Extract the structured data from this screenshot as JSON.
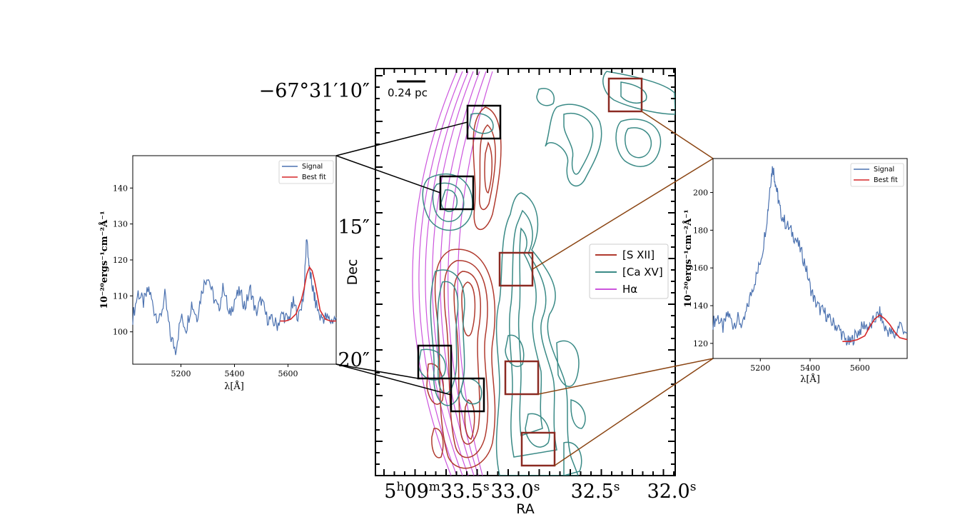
{
  "chart_data": [
    {
      "type": "contour-map",
      "xlabel": "RA",
      "ylabel": "Dec",
      "x_ticks": [
        "5h09m33.5s",
        "33.0s",
        "32.5s",
        "32.0s"
      ],
      "x_tick_parts": [
        {
          "main": "5",
          "sup": "h",
          "mid": "09",
          "sup2": "m",
          "end": "33.5",
          "sup3": "s"
        },
        {
          "main": "33.0",
          "sup": "s"
        },
        {
          "main": "32.5",
          "sup": "s"
        },
        {
          "main": "32.0",
          "sup": "s"
        }
      ],
      "y_ticks": [
        "−67°31′10″",
        "15″",
        "20″"
      ],
      "scalebar_label": "0.24 pc",
      "legend": [
        {
          "label": "[S XII]",
          "color": "#b03a2e"
        },
        {
          "label": "[Ca XV]",
          "color": "#3a8a86"
        },
        {
          "label": "Hα",
          "color": "#cc55dd"
        }
      ],
      "legend_placement": "center-right",
      "region_boxes": {
        "black": 4,
        "brown": 4
      },
      "colors": {
        "s12": "#b03a2e",
        "ca15": "#3a8a86",
        "halpha": "#cc55dd",
        "box_black": "#000000",
        "box_brown": "#8b2a22"
      }
    },
    {
      "type": "line",
      "title": "",
      "xlabel": "λ[Å]",
      "ylabel": "10⁻²⁰ergs⁻¹cm⁻²Å⁻¹",
      "xlim": [
        5020,
        5780
      ],
      "ylim": [
        91,
        149
      ],
      "x_ticks": [
        5200,
        5400,
        5600
      ],
      "y_ticks": [
        100,
        110,
        120,
        130,
        140
      ],
      "legend": [
        "Signal",
        "Best fit"
      ],
      "legend_placement": "top-right",
      "series": [
        {
          "name": "Signal",
          "color": "#4c72b0",
          "x": [
            5020,
            5040,
            5060,
            5080,
            5100,
            5120,
            5140,
            5160,
            5180,
            5200,
            5220,
            5240,
            5260,
            5280,
            5300,
            5320,
            5340,
            5360,
            5380,
            5400,
            5420,
            5440,
            5460,
            5480,
            5500,
            5520,
            5540,
            5560,
            5580,
            5600,
            5620,
            5640,
            5660,
            5670,
            5680,
            5690,
            5700,
            5720,
            5740,
            5760,
            5780
          ],
          "y": [
            104,
            111,
            108,
            112,
            106,
            103,
            110,
            99,
            95,
            104,
            101,
            108,
            104,
            112,
            116,
            110,
            106,
            113,
            104,
            109,
            111,
            107,
            112,
            105,
            109,
            104,
            103,
            102,
            105,
            103,
            108,
            104,
            111,
            127,
            117,
            113,
            109,
            104,
            104,
            103,
            104
          ]
        },
        {
          "name": "Best fit",
          "color": "#d62728",
          "x": [
            5570,
            5590,
            5610,
            5630,
            5650,
            5660,
            5670,
            5680,
            5690,
            5700,
            5710,
            5720,
            5740,
            5760,
            5780
          ],
          "y": [
            103,
            103,
            103.5,
            105,
            109,
            112,
            116,
            118,
            117,
            114,
            110,
            106,
            103.5,
            103,
            103
          ]
        }
      ]
    },
    {
      "type": "line",
      "title": "",
      "xlabel": "λ[Å]",
      "ylabel": "10⁻²⁰ergs⁻¹cm⁻²Å⁻¹",
      "xlim": [
        5010,
        5790
      ],
      "ylim": [
        112,
        218
      ],
      "x_ticks": [
        5200,
        5400,
        5600
      ],
      "y_ticks": [
        120,
        140,
        160,
        180,
        200
      ],
      "legend": [
        "Signal",
        "Best fit"
      ],
      "legend_placement": "top-right",
      "series": [
        {
          "name": "Signal",
          "color": "#4c72b0",
          "x": [
            5010,
            5030,
            5050,
            5070,
            5090,
            5110,
            5130,
            5150,
            5170,
            5190,
            5210,
            5230,
            5240,
            5250,
            5260,
            5270,
            5280,
            5300,
            5320,
            5340,
            5360,
            5380,
            5400,
            5420,
            5440,
            5460,
            5480,
            5500,
            5520,
            5540,
            5560,
            5580,
            5600,
            5620,
            5640,
            5660,
            5680,
            5700,
            5720,
            5740,
            5760,
            5790
          ],
          "y": [
            131,
            134,
            128,
            136,
            130,
            133,
            129,
            140,
            150,
            158,
            170,
            190,
            205,
            214,
            206,
            198,
            190,
            184,
            180,
            176,
            170,
            162,
            150,
            142,
            138,
            136,
            132,
            130,
            127,
            122,
            120,
            124,
            127,
            130,
            128,
            133,
            136,
            128,
            126,
            124,
            130,
            126
          ]
        },
        {
          "name": "Best fit",
          "color": "#d62728",
          "x": [
            5530,
            5560,
            5590,
            5620,
            5640,
            5660,
            5680,
            5700,
            5720,
            5740,
            5760,
            5790
          ],
          "y": [
            121,
            121,
            122,
            124,
            129,
            133,
            135,
            133,
            130,
            126,
            123,
            122
          ]
        }
      ]
    }
  ]
}
